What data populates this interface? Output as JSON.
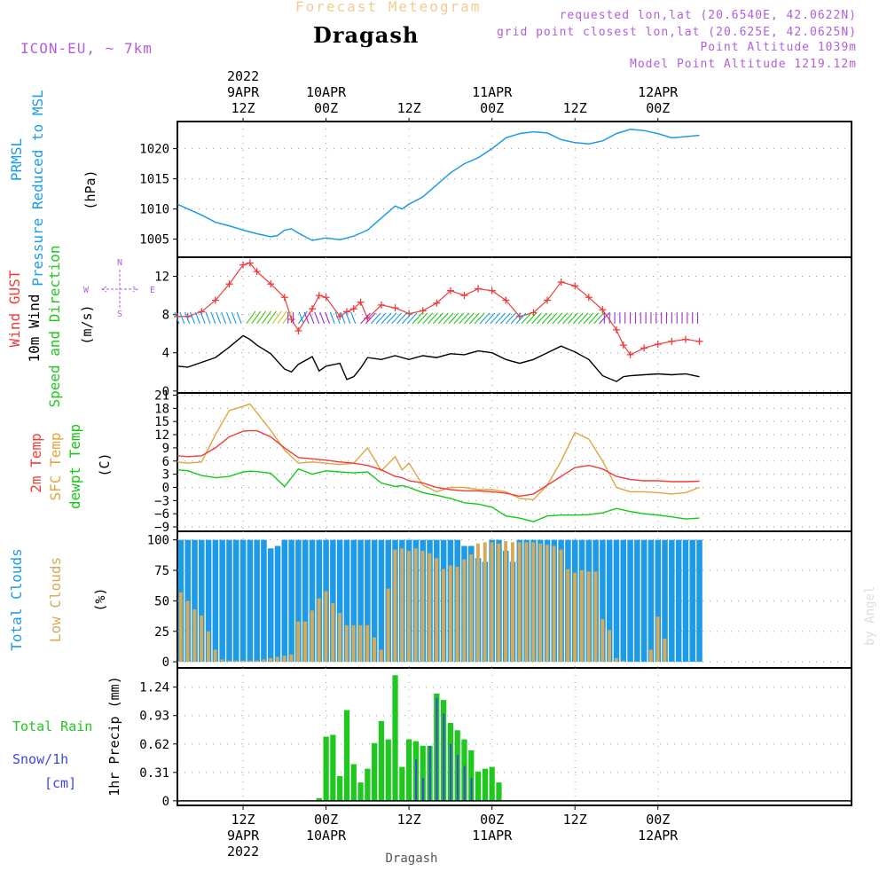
{
  "header": {
    "title": "Forecast Meteogram",
    "location": "Dragash",
    "model": "ICON-EU, ~ 7km",
    "requested": "requested lon,lat (20.6540E, 42.0622N)",
    "grid_point": "grid point closest lon,lat (20.625E, 42.0625N)",
    "point_altitude": "Point Altitude 1039m",
    "model_altitude": "Model Point Altitude 1219.12m",
    "footer": "Dragash",
    "watermark": "by Angel"
  },
  "time_axis": {
    "range_hours": [
      -9.5,
      88
    ],
    "top_ticks": [
      {
        "h": 0,
        "lines": [
          "2022",
          "9APR",
          "12Z"
        ]
      },
      {
        "h": 12,
        "lines": [
          "10APR",
          "00Z"
        ]
      },
      {
        "h": 24,
        "lines": [
          "12Z"
        ]
      },
      {
        "h": 36,
        "lines": [
          "11APR",
          "00Z"
        ]
      },
      {
        "h": 48,
        "lines": [
          "12Z"
        ]
      },
      {
        "h": 60,
        "lines": [
          "12APR",
          "00Z"
        ]
      }
    ],
    "bottom_ticks": [
      {
        "h": 0,
        "lines": [
          "12Z",
          "9APR",
          "2022"
        ]
      },
      {
        "h": 12,
        "lines": [
          "00Z",
          "10APR"
        ]
      },
      {
        "h": 24,
        "lines": [
          "12Z"
        ]
      },
      {
        "h": 36,
        "lines": [
          "00Z",
          "11APR"
        ]
      },
      {
        "h": 48,
        "lines": [
          "12Z"
        ]
      },
      {
        "h": 60,
        "lines": [
          "00Z",
          "12APR"
        ]
      }
    ]
  },
  "colors": {
    "pressure": "#1e9be6",
    "gust": "#f03c3c",
    "wind": "#000000",
    "temp2m": "#f03c3c",
    "sfc": "#e1a53c",
    "dew": "#14c814",
    "total_clouds": "#1e9be6",
    "low_clouds": "#d7aa5a",
    "rain": "#1ec81e",
    "snow": "#3c46e6",
    "compass": "#b25fdc"
  },
  "chart_data": [
    {
      "type": "line",
      "panel": "pressure",
      "labels": [
        "PRMSL",
        "Pressure Reduced to MSL",
        "(hPa)"
      ],
      "yticks": [
        1005,
        1010,
        1015,
        1020
      ],
      "ylim": [
        1002,
        1024.5
      ],
      "x": [
        -9.5,
        -8,
        -6,
        -4,
        -2,
        0,
        2,
        4,
        5,
        6,
        7,
        8,
        10,
        12,
        14,
        16,
        18,
        20,
        22,
        23,
        24,
        26,
        28,
        30,
        32,
        34,
        36,
        38,
        40,
        42,
        44,
        46,
        48,
        50,
        52,
        54,
        56,
        58,
        60,
        62,
        64,
        66
      ],
      "series": [
        {
          "name": "Pressure",
          "values": [
            1010.8,
            1010,
            1009,
            1007.8,
            1007.2,
            1006.5,
            1005.9,
            1005.4,
            1005.6,
            1006.5,
            1006.7,
            1006,
            1004.8,
            1005.2,
            1004.9,
            1005.5,
            1006.5,
            1008.5,
            1010.5,
            1010,
            1010.8,
            1012,
            1014,
            1016,
            1017.5,
            1018.5,
            1020,
            1021.8,
            1022.5,
            1022.8,
            1022.6,
            1021.5,
            1021,
            1020.8,
            1021.3,
            1022.5,
            1023.2,
            1023,
            1022.5,
            1021.8,
            1022,
            1022.2
          ]
        }
      ]
    },
    {
      "type": "line",
      "panel": "wind",
      "labels": [
        "Wind GUST",
        "10m Wind",
        "Speed and Direction",
        "(m/s)"
      ],
      "compass": {
        "n": "N",
        "s": "S",
        "w": "W",
        "e": "E"
      },
      "yticks": [
        0,
        4,
        8,
        12
      ],
      "ylim": [
        -0.2,
        14
      ],
      "x": [
        -9.5,
        -8,
        -6,
        -4,
        -2,
        0,
        1,
        2,
        4,
        6,
        7,
        8,
        10,
        11,
        12,
        14,
        15,
        16,
        17,
        18,
        20,
        22,
        24,
        26,
        28,
        30,
        32,
        34,
        36,
        38,
        40,
        42,
        44,
        46,
        48,
        50,
        52,
        54,
        55,
        56,
        58,
        60,
        62,
        64,
        66
      ],
      "series": [
        {
          "name": "Wind GUST",
          "values": [
            7.8,
            7.8,
            8.3,
            9.5,
            11.2,
            13.2,
            13.4,
            12.5,
            11.2,
            9.8,
            7.5,
            6.3,
            8.6,
            10,
            9.8,
            7.8,
            8.3,
            8.6,
            9.3,
            7.6,
            9,
            8.7,
            8.1,
            8.4,
            9.2,
            10.5,
            10,
            10.7,
            10.5,
            9.5,
            7.8,
            8.2,
            9.5,
            11.4,
            11,
            9.8,
            8.5,
            6.4,
            4.8,
            3.8,
            4.5,
            4.9,
            5.2,
            5.4,
            5.2
          ]
        },
        {
          "name": "10m Wind",
          "values": [
            2.6,
            2.5,
            3,
            3.5,
            4.6,
            5.8,
            5.4,
            4.8,
            3.9,
            2.3,
            2,
            2.8,
            3.6,
            2.1,
            2.6,
            2.9,
            1.2,
            1.5,
            2.4,
            3.5,
            3.3,
            3.7,
            3.3,
            3.7,
            3.5,
            3.9,
            3.8,
            4.2,
            4,
            3.3,
            2.9,
            3.3,
            4,
            4.7,
            4.1,
            3.3,
            1.6,
            1,
            1.5,
            1.6,
            1.7,
            1.8,
            1.7,
            1.8,
            1.5
          ]
        }
      ],
      "barbs": [
        {
          "from": -9.5,
          "to": 0,
          "color": "#1e9be6"
        },
        {
          "from": 0,
          "to": 4,
          "color": "#4ec81e"
        },
        {
          "from": 4,
          "to": 6,
          "color": "#c8c832"
        },
        {
          "from": 6,
          "to": 8,
          "color": "#9b32c8"
        },
        {
          "from": 8,
          "to": 9.5,
          "color": "#1e9be6"
        },
        {
          "from": 9.5,
          "to": 13,
          "color": "#9b32c8"
        },
        {
          "from": 13,
          "to": 17,
          "color": "#1e9be6"
        },
        {
          "from": 17,
          "to": 18,
          "color": "#9b32c8"
        },
        {
          "from": 18,
          "to": 24,
          "color": "#1e9be6"
        },
        {
          "from": 24,
          "to": 34,
          "color": "#1ec81e"
        },
        {
          "from": 34,
          "to": 40,
          "color": "#1e9be6"
        },
        {
          "from": 40,
          "to": 51,
          "color": "#1ec81e"
        },
        {
          "from": 51,
          "to": 66,
          "color": "#9b32c8"
        }
      ]
    },
    {
      "type": "line",
      "panel": "temperature",
      "labels": [
        "2m Temp",
        "SFC Temp",
        "dewpt Temp",
        "(C)"
      ],
      "yticks": [
        -9,
        -6,
        -3,
        0,
        3,
        6,
        9,
        12,
        15,
        18,
        21
      ],
      "ylim": [
        -10,
        21.5
      ],
      "x": [
        -9.5,
        -8,
        -6,
        -4,
        -2,
        0,
        1,
        2,
        4,
        6,
        8,
        10,
        12,
        14,
        16,
        18,
        20,
        22,
        23,
        24,
        26,
        28,
        30,
        32,
        34,
        36,
        38,
        40,
        42,
        44,
        46,
        48,
        50,
        52,
        54,
        56,
        58,
        60,
        62,
        64,
        66
      ],
      "series": [
        {
          "name": "2m Temp",
          "values": [
            7.2,
            7,
            7.2,
            9,
            11.5,
            12.8,
            12.9,
            12.9,
            11.5,
            9,
            6.8,
            6.5,
            6.2,
            5.8,
            5.5,
            5,
            4,
            2.5,
            2.2,
            1.5,
            1,
            0,
            -0.5,
            -0.8,
            -0.8,
            -1,
            -1.3,
            -2,
            -1.5,
            0.5,
            2.5,
            4.5,
            5,
            4.2,
            2.5,
            1.8,
            1.5,
            1.5,
            1.3,
            1.3,
            1.4
          ]
        },
        {
          "name": "SFC Temp",
          "values": [
            5.8,
            5.5,
            5.8,
            12,
            17.5,
            18.5,
            19,
            17,
            13,
            8.5,
            5.5,
            5.8,
            5.5,
            5.2,
            5.5,
            9,
            3.8,
            7,
            4,
            5.5,
            0.5,
            -1,
            0,
            0,
            -0.5,
            -0.5,
            -1,
            -2.5,
            -2.8,
            0.5,
            6,
            12.5,
            11,
            6,
            0,
            -1,
            -1,
            -1.2,
            -1.5,
            -1.2,
            0
          ]
        },
        {
          "name": "dewpt Temp",
          "values": [
            4,
            3.8,
            2.7,
            2.2,
            2.5,
            3.5,
            3.7,
            3.6,
            3.2,
            0.2,
            4.2,
            3,
            3.8,
            3.5,
            3.3,
            3.5,
            1,
            0.2,
            0.4,
            0,
            -1.2,
            -1.8,
            -2.5,
            -3.5,
            -3.8,
            -4.5,
            -6.5,
            -7,
            -7.8,
            -6.5,
            -6.3,
            -6.3,
            -6.2,
            -5.8,
            -4.8,
            -5.5,
            -6,
            -6.3,
            -6.7,
            -7.2,
            -7
          ]
        }
      ]
    },
    {
      "type": "bar",
      "panel": "clouds",
      "labels": [
        "Total Clouds",
        "Low Clouds",
        "(%)"
      ],
      "yticks": [
        0,
        25,
        50,
        75,
        100
      ],
      "ylim": [
        -5,
        107
      ],
      "x": [
        -9,
        -8,
        -7,
        -6,
        -5,
        -4,
        -3,
        -2,
        -1,
        0,
        1,
        2,
        3,
        4,
        5,
        6,
        7,
        8,
        9,
        10,
        11,
        12,
        13,
        14,
        15,
        16,
        17,
        18,
        19,
        20,
        21,
        22,
        23,
        24,
        25,
        26,
        27,
        28,
        29,
        30,
        31,
        32,
        33,
        34,
        35,
        36,
        37,
        38,
        39,
        40,
        41,
        42,
        43,
        44,
        45,
        46,
        47,
        48,
        49,
        50,
        51,
        52,
        53,
        54,
        55,
        56,
        57,
        58,
        59,
        60,
        61,
        62,
        63,
        64,
        65,
        66
      ],
      "series": [
        {
          "name": "Total Clouds",
          "values": [
            100,
            100,
            100,
            100,
            100,
            100,
            100,
            100,
            100,
            100,
            100,
            100,
            100,
            93,
            95,
            100,
            100,
            100,
            100,
            100,
            100,
            100,
            100,
            100,
            100,
            100,
            100,
            100,
            100,
            100,
            100,
            100,
            100,
            100,
            100,
            100,
            100,
            100,
            100,
            100,
            100,
            95,
            95,
            85,
            82,
            100,
            100,
            91,
            82,
            100,
            100,
            100,
            100,
            100,
            100,
            100,
            100,
            100,
            100,
            100,
            100,
            100,
            100,
            100,
            100,
            100,
            100,
            100,
            100,
            100,
            100,
            100,
            100,
            100,
            100,
            100
          ]
        },
        {
          "name": "Low Clouds",
          "values": [
            57,
            50,
            43,
            38,
            25,
            10,
            2,
            1,
            1,
            1,
            1,
            1,
            2,
            3,
            4,
            5,
            6,
            33,
            33,
            42,
            52,
            58,
            48,
            40,
            30,
            30,
            30,
            30,
            20,
            10,
            60,
            92,
            93,
            91,
            93,
            91,
            89,
            85,
            76,
            79,
            78,
            84,
            88,
            97,
            98,
            98,
            97,
            99,
            98,
            98,
            98,
            98,
            97,
            96,
            95,
            92,
            76,
            73,
            75,
            74,
            74,
            35,
            26,
            3,
            1,
            0,
            0,
            0,
            10,
            37,
            19,
            0,
            0,
            0,
            0,
            0
          ]
        }
      ]
    },
    {
      "type": "bar",
      "panel": "precip",
      "labels": [
        "1hr Precip (mm)"
      ],
      "legend": [
        "Total Rain",
        "Snow/1h",
        "[cm]"
      ],
      "yticks": [
        0,
        0.31,
        0.62,
        0.93,
        1.24
      ],
      "yticklabels": [
        "0",
        "0.31",
        "0.62",
        "0.93",
        "1.24"
      ],
      "ylim": [
        -0.05,
        1.45
      ],
      "x": [
        -9,
        -8,
        -7,
        -6,
        -5,
        -4,
        -3,
        -2,
        -1,
        0,
        1,
        2,
        3,
        4,
        5,
        6,
        7,
        8,
        9,
        10,
        11,
        12,
        13,
        14,
        15,
        16,
        17,
        18,
        19,
        20,
        21,
        22,
        23,
        24,
        25,
        26,
        27,
        28,
        29,
        30,
        31,
        32,
        33,
        34,
        35,
        36,
        37,
        38,
        39,
        40,
        41,
        42,
        43,
        44,
        45,
        46,
        47,
        48,
        49,
        50,
        51,
        52,
        53,
        54,
        55,
        56,
        57,
        58,
        59,
        60,
        61,
        62,
        63,
        64,
        65,
        66
      ],
      "series": [
        {
          "name": "Total Rain",
          "values": [
            0,
            0,
            0,
            0,
            0,
            0,
            0,
            0,
            0,
            0,
            0,
            0,
            0,
            0,
            0,
            0,
            0,
            0,
            0,
            0,
            0.03,
            0.7,
            0.72,
            0.27,
            0.99,
            0.4,
            0.2,
            0.35,
            0.63,
            0.87,
            0.67,
            1.37,
            0.37,
            0.67,
            0.65,
            0.6,
            0.6,
            1.17,
            1.1,
            0.85,
            0.77,
            0.67,
            0.55,
            0.32,
            0.35,
            0.37,
            0.2,
            0,
            0,
            0,
            0,
            0,
            0,
            0,
            0,
            0,
            0,
            0,
            0,
            0,
            0,
            0,
            0,
            0,
            0,
            0,
            0,
            0,
            0,
            0,
            0,
            0,
            0,
            0,
            0,
            0
          ]
        },
        {
          "name": "Snow/1h",
          "values": [
            0,
            0,
            0,
            0,
            0,
            0,
            0,
            0,
            0,
            0,
            0,
            0,
            0,
            0,
            0,
            0,
            0,
            0,
            0,
            0,
            0,
            0,
            0,
            0,
            0,
            0,
            0,
            0,
            0,
            0,
            0,
            0,
            0,
            0,
            0.45,
            0.25,
            0.6,
            1.12,
            0.95,
            0.62,
            0.5,
            0.38,
            0.25,
            0,
            0,
            0,
            0,
            0,
            0,
            0,
            0,
            0,
            0,
            0,
            0,
            0,
            0,
            0,
            0,
            0,
            0,
            0,
            0,
            0,
            0,
            0,
            0,
            0,
            0,
            0,
            0,
            0,
            0,
            0,
            0,
            0
          ]
        }
      ]
    }
  ]
}
